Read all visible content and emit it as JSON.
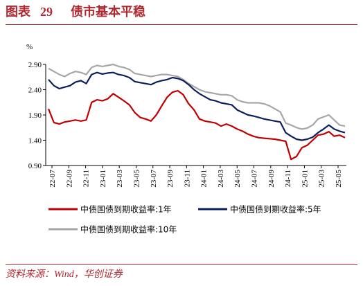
{
  "header": {
    "label": "图表",
    "number": "29",
    "title": "债市基本平稳"
  },
  "source": "资料来源：Wind，华创证券",
  "chart_data": {
    "type": "line",
    "ylabel": "%",
    "ylim": [
      0.9,
      2.9
    ],
    "yticks": [
      "0.90",
      "1.40",
      "1.90",
      "2.40",
      "2.90"
    ],
    "xticks": [
      "22-07",
      "22-09",
      "22-11",
      "23-01",
      "23-03",
      "23-05",
      "23-07",
      "23-09",
      "23-11",
      "24-01",
      "24-03",
      "24-05",
      "24-07",
      "24-09",
      "24-11",
      "25-01",
      "25-03",
      "25-05"
    ],
    "legend_position": "bottom",
    "series": [
      {
        "name": "中债国债到期收益率:1年",
        "color": "#c00000",
        "values": [
          2.02,
          1.75,
          1.72,
          1.76,
          1.78,
          1.8,
          1.78,
          1.8,
          2.15,
          2.2,
          2.18,
          2.22,
          2.32,
          2.25,
          2.18,
          2.1,
          1.95,
          1.85,
          1.82,
          1.78,
          1.9,
          2.08,
          2.25,
          2.35,
          2.38,
          2.3,
          2.12,
          2.0,
          1.82,
          1.78,
          1.76,
          1.74,
          1.68,
          1.72,
          1.68,
          1.62,
          1.58,
          1.52,
          1.48,
          1.45,
          1.44,
          1.43,
          1.42,
          1.4,
          1.38,
          1.02,
          1.08,
          1.25,
          1.3,
          1.4,
          1.5,
          1.52,
          1.57,
          1.48,
          1.5,
          1.45
        ]
      },
      {
        "name": "中债国债到期收益率:5年",
        "color": "#0a1f5c",
        "values": [
          2.6,
          2.48,
          2.42,
          2.45,
          2.48,
          2.55,
          2.58,
          2.52,
          2.7,
          2.74,
          2.71,
          2.73,
          2.74,
          2.7,
          2.68,
          2.64,
          2.56,
          2.54,
          2.52,
          2.5,
          2.55,
          2.58,
          2.6,
          2.64,
          2.62,
          2.58,
          2.5,
          2.4,
          2.32,
          2.26,
          2.2,
          2.18,
          2.14,
          2.12,
          2.1,
          2.0,
          1.95,
          1.9,
          1.88,
          1.85,
          1.82,
          1.8,
          1.78,
          1.76,
          1.55,
          1.48,
          1.42,
          1.4,
          1.42,
          1.46,
          1.55,
          1.62,
          1.7,
          1.62,
          1.58,
          1.55
        ]
      },
      {
        "name": "中债国债到期收益率:10年",
        "color": "#a6a6a6",
        "values": [
          2.82,
          2.76,
          2.7,
          2.66,
          2.72,
          2.76,
          2.74,
          2.7,
          2.84,
          2.88,
          2.86,
          2.88,
          2.9,
          2.86,
          2.84,
          2.8,
          2.72,
          2.7,
          2.68,
          2.66,
          2.68,
          2.7,
          2.7,
          2.68,
          2.66,
          2.6,
          2.52,
          2.46,
          2.4,
          2.36,
          2.34,
          2.32,
          2.3,
          2.3,
          2.28,
          2.2,
          2.16,
          2.14,
          2.14,
          2.14,
          2.12,
          2.08,
          2.02,
          1.96,
          1.74,
          1.7,
          1.65,
          1.62,
          1.64,
          1.7,
          1.82,
          1.86,
          1.9,
          1.8,
          1.7,
          1.68
        ]
      }
    ]
  }
}
